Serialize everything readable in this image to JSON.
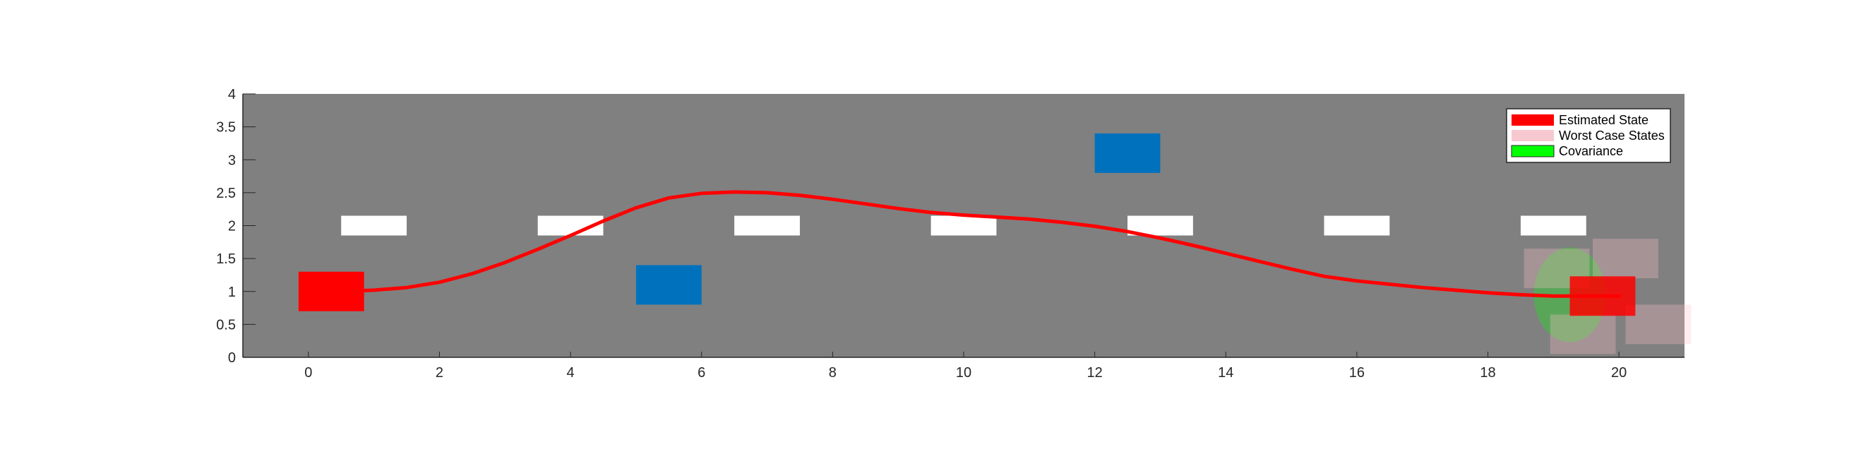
{
  "chart_data": {
    "type": "line",
    "title": "",
    "xlabel": "",
    "ylabel": "",
    "xlim": [
      -1,
      21
    ],
    "ylim": [
      0,
      4
    ],
    "grid": false,
    "legend_position": "top-right",
    "background_color": "#808080",
    "x_ticks": [
      0,
      2,
      4,
      6,
      8,
      10,
      12,
      14,
      16,
      18,
      20
    ],
    "x_tick_labels": [
      "0",
      "2",
      "4",
      "6",
      "8",
      "10",
      "12",
      "14",
      "16",
      "18",
      "20"
    ],
    "y_ticks": [
      0,
      0.5,
      1,
      1.5,
      2,
      2.5,
      3,
      3.5,
      4
    ],
    "y_tick_labels": [
      "0",
      "0.5",
      "1",
      "1.5",
      "2",
      "2.5",
      "3",
      "3.5",
      "4"
    ],
    "lane_markings": {
      "color": "#ffffff",
      "y": 2,
      "height": 0.3,
      "width": 1,
      "x_centers": [
        1,
        4,
        7,
        10,
        13,
        16,
        19
      ]
    },
    "obstacles": {
      "color": "#0072BD",
      "items": [
        {
          "x": 5.5,
          "y": 1.1,
          "width": 1,
          "height": 0.6
        },
        {
          "x": 12.5,
          "y": 3.1,
          "width": 1,
          "height": 0.6
        }
      ]
    },
    "trajectory": {
      "color": "#ff0000",
      "x": [
        0,
        0.5,
        1,
        1.5,
        2,
        2.5,
        3,
        3.5,
        4,
        4.5,
        5,
        5.5,
        6,
        6.5,
        7,
        7.5,
        8,
        8.5,
        9,
        9.5,
        10,
        10.5,
        11,
        11.5,
        12,
        12.5,
        13,
        13.5,
        14,
        14.5,
        15,
        15.5,
        16,
        16.5,
        17,
        17.5,
        18,
        18.5,
        19,
        19.5,
        20
      ],
      "y": [
        1.0,
        1.0,
        1.02,
        1.06,
        1.14,
        1.27,
        1.44,
        1.64,
        1.85,
        2.07,
        2.27,
        2.42,
        2.49,
        2.51,
        2.5,
        2.46,
        2.4,
        2.33,
        2.26,
        2.2,
        2.16,
        2.13,
        2.1,
        2.05,
        1.99,
        1.91,
        1.81,
        1.7,
        1.58,
        1.46,
        1.34,
        1.23,
        1.16,
        1.11,
        1.06,
        1.02,
        0.98,
        0.95,
        0.93,
        0.93,
        0.93
      ]
    },
    "series": [
      {
        "name": "Estimated State",
        "color": "#ff0000",
        "rects": [
          {
            "x": 0.35,
            "y": 1.0,
            "width": 1,
            "height": 0.6
          },
          {
            "x": 19.75,
            "y": 0.93,
            "width": 1,
            "height": 0.6
          }
        ]
      },
      {
        "name": "Worst Case States",
        "color": "#ffc0cb",
        "opacity": 0.3,
        "rects": [
          {
            "x": 19.05,
            "y": 1.35,
            "width": 1,
            "height": 0.6
          },
          {
            "x": 20.1,
            "y": 1.5,
            "width": 1,
            "height": 0.6
          },
          {
            "x": 19.45,
            "y": 0.35,
            "width": 1,
            "height": 0.6
          },
          {
            "x": 20.6,
            "y": 0.5,
            "width": 1,
            "height": 0.6
          }
        ]
      },
      {
        "name": "Covariance",
        "color": "#00ff00",
        "opacity": 0.3,
        "ellipse": {
          "cx": 19.25,
          "cy": 0.95,
          "rx": 0.55,
          "ry": 0.72
        }
      }
    ]
  }
}
